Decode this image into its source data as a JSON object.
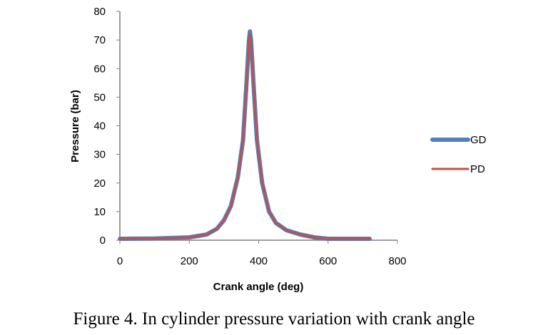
{
  "chart_data": {
    "type": "line",
    "title": "",
    "xlabel": "Crank angle (deg)",
    "ylabel": "Pressure (bar)",
    "xlim": [
      0,
      800
    ],
    "ylim": [
      0,
      80
    ],
    "xticks": [
      0,
      200,
      400,
      600,
      800
    ],
    "yticks": [
      0,
      10,
      20,
      30,
      40,
      50,
      60,
      70,
      80
    ],
    "grid": false,
    "legend_position": "right",
    "series": [
      {
        "name": "GD",
        "color": "#4f81bd",
        "points": [
          [
            0,
            0.5
          ],
          [
            100,
            0.6
          ],
          [
            200,
            1
          ],
          [
            250,
            2
          ],
          [
            280,
            4
          ],
          [
            300,
            7
          ],
          [
            320,
            12
          ],
          [
            340,
            22
          ],
          [
            355,
            35
          ],
          [
            365,
            55
          ],
          [
            372,
            70
          ],
          [
            375,
            73
          ],
          [
            378,
            70
          ],
          [
            385,
            55
          ],
          [
            395,
            35
          ],
          [
            410,
            20
          ],
          [
            430,
            10
          ],
          [
            450,
            6
          ],
          [
            480,
            3.5
          ],
          [
            520,
            2
          ],
          [
            560,
            1
          ],
          [
            600,
            0.5
          ],
          [
            720,
            0.5
          ]
        ]
      },
      {
        "name": "PD",
        "color": "#c0504d",
        "points": [
          [
            0,
            0.5
          ],
          [
            100,
            0.6
          ],
          [
            200,
            1
          ],
          [
            250,
            2
          ],
          [
            280,
            4
          ],
          [
            300,
            7
          ],
          [
            320,
            12
          ],
          [
            340,
            22
          ],
          [
            355,
            35
          ],
          [
            365,
            55
          ],
          [
            372,
            69
          ],
          [
            375,
            72
          ],
          [
            378,
            69
          ],
          [
            385,
            55
          ],
          [
            395,
            35
          ],
          [
            410,
            20
          ],
          [
            430,
            10
          ],
          [
            450,
            6
          ],
          [
            480,
            3.5
          ],
          [
            520,
            2
          ],
          [
            560,
            1
          ],
          [
            600,
            0.5
          ],
          [
            720,
            0.5
          ]
        ]
      }
    ]
  },
  "caption": "Figure 4. In cylinder pressure variation with crank angle"
}
